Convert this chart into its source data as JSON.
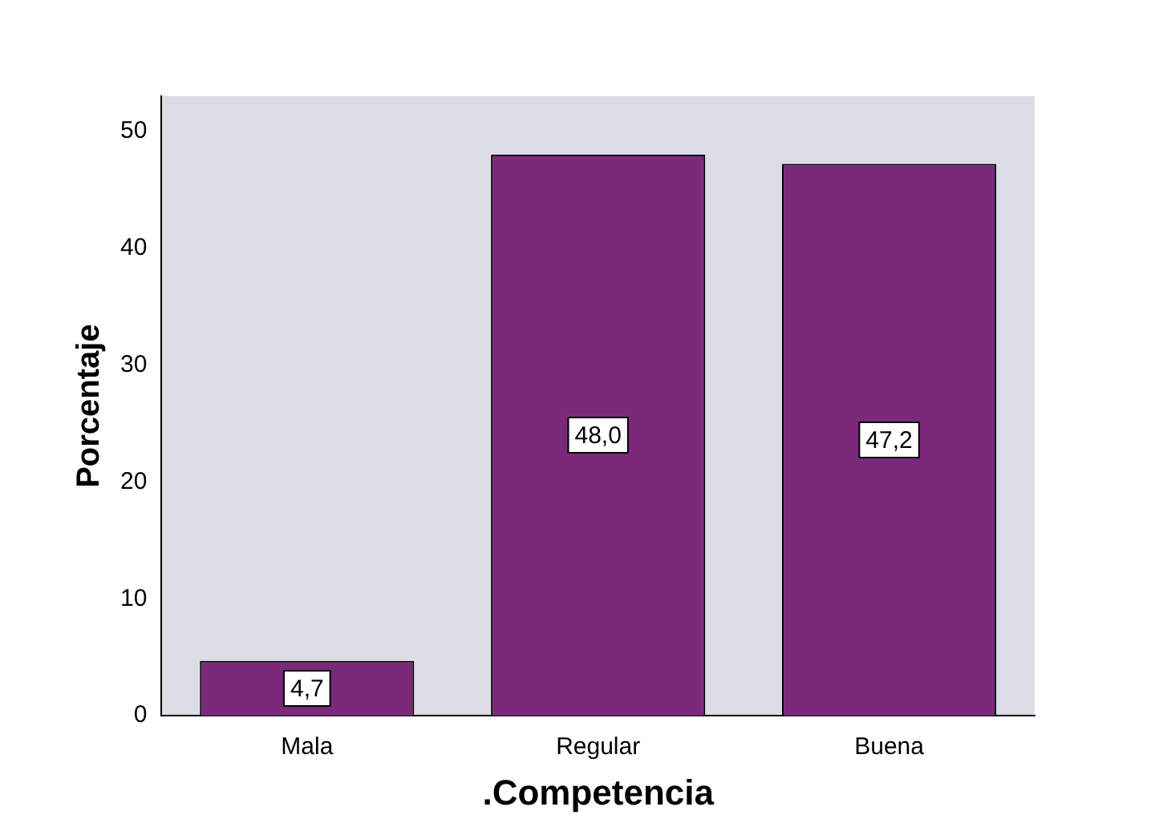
{
  "chart_data": {
    "type": "bar",
    "xlabel": ".Competencia",
    "ylabel": "Porcentaje",
    "categories": [
      "Mala",
      "Regular",
      "Buena"
    ],
    "values": [
      4.7,
      48.0,
      47.2
    ],
    "value_labels": [
      "4,7",
      "48,0",
      "47,2"
    ],
    "color": "#7b2a7b",
    "ylim": [
      0,
      53
    ],
    "yticks": [
      0,
      10,
      20,
      30,
      40,
      50
    ],
    "grid": false,
    "legend": false
  }
}
